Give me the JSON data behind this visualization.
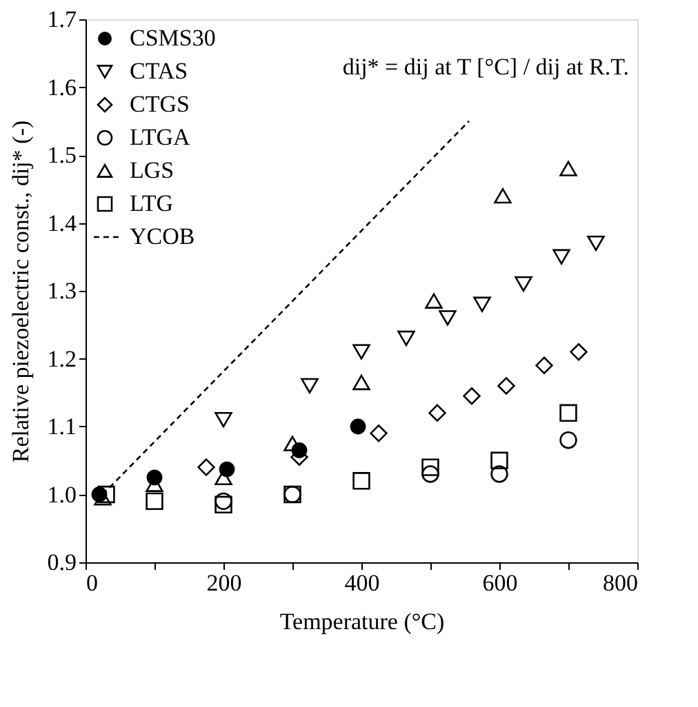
{
  "chart_data": {
    "type": "scatter",
    "xlabel": "Temperature (°C)",
    "ylabel": "Relative piezoelectric const., dij* (-)",
    "xlim": [
      0,
      800
    ],
    "ylim": [
      0.9,
      1.7
    ],
    "xticks": [
      0,
      {
        "value": 100,
        "label": null
      },
      200,
      {
        "value": 300,
        "label": null
      },
      400,
      {
        "value": 500,
        "label": null
      },
      600,
      {
        "value": 700,
        "label": null
      },
      800
    ],
    "yticks": [
      0.9,
      {
        "value": 1,
        "label": "1.0"
      },
      1.1,
      1.2,
      1.3,
      1.4,
      1.5,
      1.6,
      1.7
    ],
    "legend": "top left",
    "grid": false,
    "annotations": [
      "dij* = dij at T [°C] / dij at R.T."
    ],
    "series": [
      {
        "name": "CSMS30",
        "color": "#000000",
        "marker": "circle",
        "x": [
          20,
          100,
          205,
          310,
          395
        ],
        "values": [
          1.0,
          1.025,
          1.037,
          1.065,
          1.1
        ]
      },
      {
        "name": "CTAS",
        "color": "#000000",
        "marker": "triangle-down",
        "x": [
          200,
          325,
          400,
          465,
          525,
          575,
          635,
          690,
          740
        ],
        "values": [
          1.11,
          1.16,
          1.21,
          1.23,
          1.26,
          1.28,
          1.31,
          1.35,
          1.37
        ]
      },
      {
        "name": "CTGS",
        "color": "#000000",
        "marker": "diamond",
        "x": [
          175,
          310,
          425,
          510,
          560,
          610,
          665,
          715
        ],
        "values": [
          1.04,
          1.055,
          1.09,
          1.12,
          1.145,
          1.16,
          1.19,
          1.21
        ]
      },
      {
        "name": "LTGA",
        "color": "#000000",
        "marker": "circle-open",
        "x": [
          200,
          300,
          500,
          600,
          700
        ],
        "values": [
          0.99,
          1.0,
          1.03,
          1.03,
          1.08
        ]
      },
      {
        "name": "LGS",
        "color": "#000000",
        "marker": "triangle-up",
        "x": [
          25,
          100,
          200,
          300,
          400,
          505,
          605,
          700
        ],
        "values": [
          0.995,
          1.015,
          1.025,
          1.075,
          1.165,
          1.285,
          1.44,
          1.48
        ]
      },
      {
        "name": "LTG",
        "color": "#000000",
        "marker": "square",
        "x": [
          30,
          100,
          200,
          300,
          400,
          500,
          600,
          700
        ],
        "values": [
          1.0,
          0.99,
          0.985,
          1.0,
          1.02,
          1.04,
          1.05,
          1.12
        ]
      },
      {
        "name": "YCOB",
        "color": "#000000",
        "type": "line",
        "line_style": "dashed",
        "x": [
          25,
          556
        ],
        "values": [
          1.0,
          1.55
        ]
      }
    ]
  }
}
